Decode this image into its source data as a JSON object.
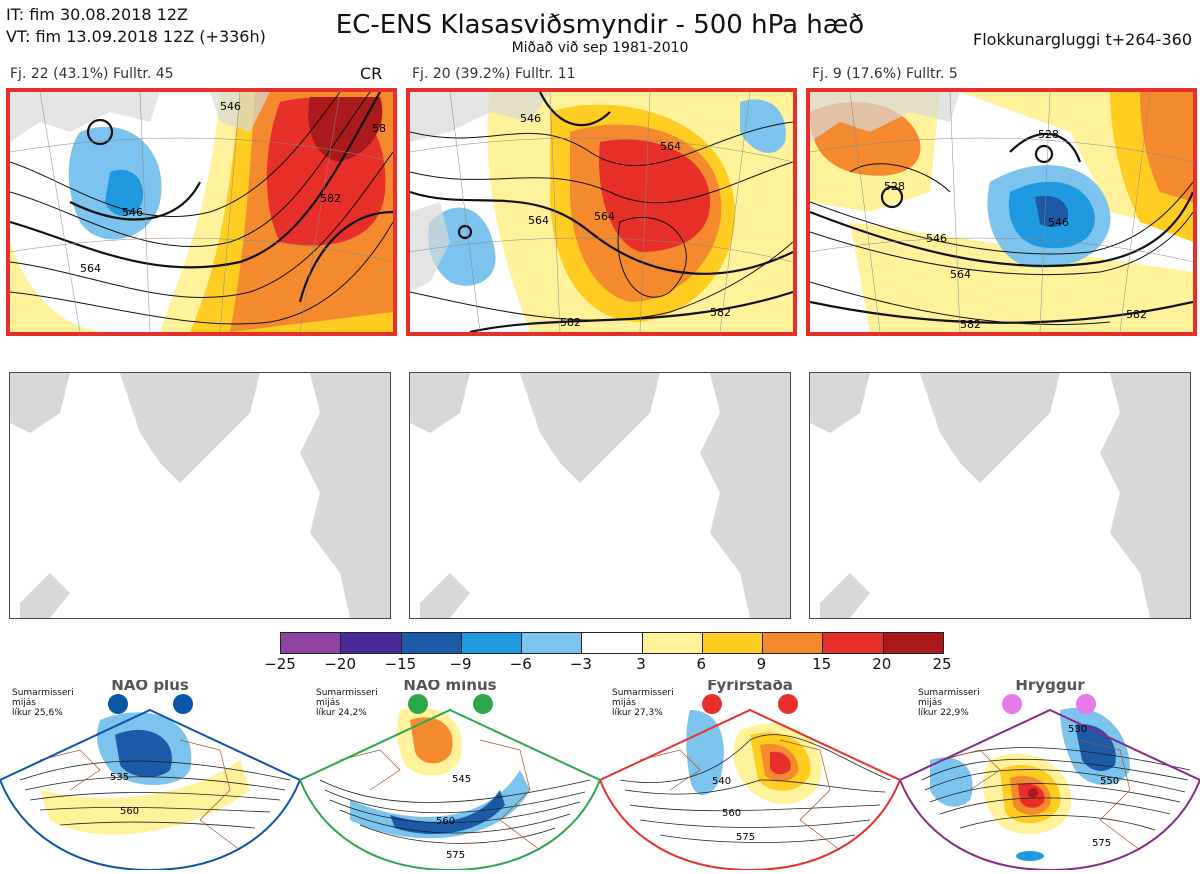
{
  "header": {
    "it_line": "IT: fim 30.08.2018 12Z",
    "vt_line": "VT: fim 13.09.2018 12Z  (+336h)",
    "title": "EC-ENS Klasasviðsmyndir - 500 hPa hæð",
    "subtitle": "Miðað við sep 1981-2010",
    "window": "Flokkunargluggi t+264-360"
  },
  "panels": [
    {
      "label": "Fj. 22 (43.1%)   Fulltr. 45",
      "badge": "CR",
      "contours": [
        "546",
        "546",
        "564",
        "582",
        "58"
      ]
    },
    {
      "label": "Fj. 20 (39.2%)   Fulltr. 11",
      "contours": [
        "546",
        "564",
        "564",
        "564",
        "582",
        "582"
      ]
    },
    {
      "label": "Fj. 9 (17.6%)   Fulltr. 5",
      "contours": [
        "528",
        "528",
        "546",
        "546",
        "564",
        "582",
        "582"
      ]
    }
  ],
  "colorbar": {
    "colors": [
      "#8e44a0",
      "#4b2a9a",
      "#1c5aa8",
      "#1f9ae0",
      "#7cc3ee",
      "#ffffff",
      "#fff29a",
      "#ffcc22",
      "#f4892e",
      "#e8302a",
      "#aa1a1a"
    ],
    "ticks": [
      "−25",
      "−20",
      "−15",
      "−9",
      "−6",
      "−3",
      "3",
      "6",
      "9",
      "15",
      "20",
      "25"
    ]
  },
  "regimes": [
    {
      "name": "NAO plús",
      "note": "Sumarmisseri\nmijás\nlíkur 25,6%",
      "color": "#0a57a8",
      "dot": "#0a57a8",
      "labels": [
        "535",
        "560"
      ]
    },
    {
      "name": "NAO mínus",
      "note": "Sumarmisseri\nmijás\nlíkur 24,2%",
      "color": "#2aa84a",
      "dot": "#2aa84a",
      "labels": [
        "545",
        "560",
        "575"
      ]
    },
    {
      "name": "Fyrirstaða",
      "note": "Sumarmisseri\nmijás\nlíkur 27,3%",
      "color": "#e8302a",
      "dot": "#e8302a",
      "labels": [
        "540",
        "560",
        "575"
      ]
    },
    {
      "name": "Hryggur",
      "note": "Sumarmisseri\nmijás\nlíkur 22,9%",
      "color": "#8a2a8a",
      "dot": "#e879e8",
      "labels": [
        "530",
        "550",
        "575"
      ]
    }
  ]
}
